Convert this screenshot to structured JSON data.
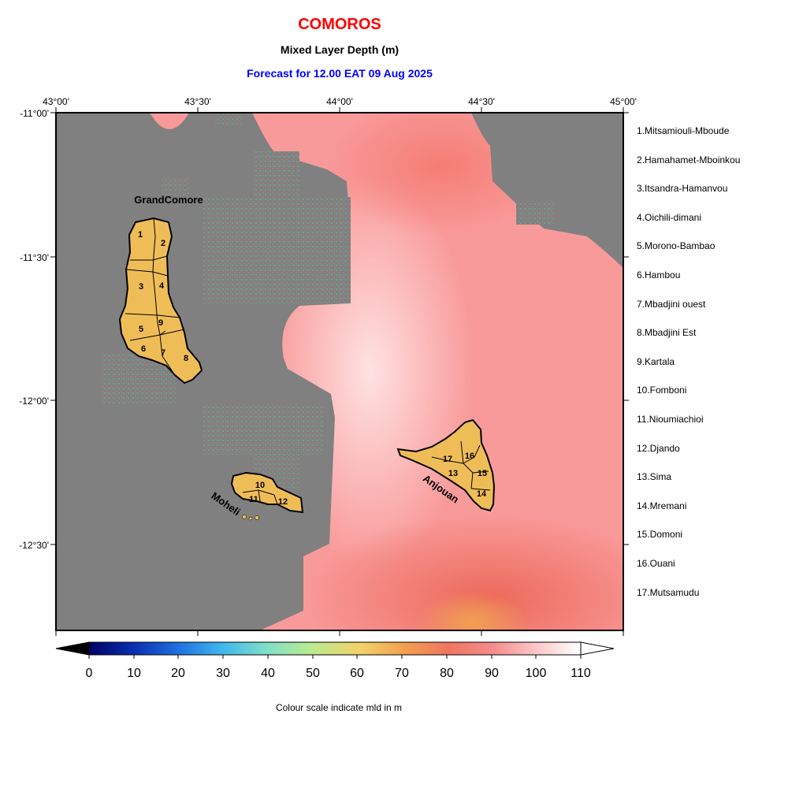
{
  "header": {
    "title": "COMOROS",
    "subtitle": "Mixed Layer Depth (m)",
    "forecast": "Forecast for  12.00 EAT 09 Aug 2025"
  },
  "map": {
    "lon_ticks": [
      "43°00'",
      "43°30'",
      "44°00'",
      "44°30'",
      "45°00'"
    ],
    "lat_ticks": [
      "-11°00'",
      "-11°30'",
      "-12°00'",
      "-12°30'"
    ],
    "lon_range": [
      43.0,
      45.0
    ],
    "lat_range": [
      -11.0,
      -12.8
    ],
    "island_labels": {
      "grand_comore": "GrandComore",
      "moheli": "Moheli",
      "anjouan": "Anjouan"
    },
    "region_numbers": [
      "1",
      "2",
      "3",
      "4",
      "5",
      "6",
      "7",
      "8",
      "9",
      "10",
      "11",
      "12",
      "13",
      "14",
      "15",
      "16",
      "17"
    ]
  },
  "regions": [
    "1.Mitsamiouli-Mboude",
    "2.Hamahamet-Mboinkou",
    "3.Itsandra-Hamanvou",
    "4.Oichili-dimani",
    "5.Morono-Bambao",
    "6.Hambou",
    "7.Mbadjini ouest",
    "8.Mbadjini Est",
    "9.Kartala",
    "10.Fomboni",
    "11.Nioumiachioi",
    "12.Djando",
    "13.Sima",
    "14.Mremani",
    "15.Domoni",
    "16.Ouani",
    "17.Mutsamudu"
  ],
  "colorbar": {
    "ticks": [
      "0",
      "10",
      "20",
      "30",
      "40",
      "50",
      "60",
      "70",
      "80",
      "90",
      "100",
      "110"
    ],
    "range": [
      0,
      110
    ],
    "caption": "Colour scale indicate mld in m",
    "colors": [
      "#000066",
      "#0a2fb0",
      "#1e6fe0",
      "#3fb6ee",
      "#7fe0c8",
      "#b9ea90",
      "#f1d36a",
      "#f2a050",
      "#f07560",
      "#f58c8c",
      "#fbc8c8",
      "#ffffff"
    ]
  },
  "colors": {
    "land": "#808080",
    "island_fill": "#efbd58",
    "sea_dominant": "#f99a9a",
    "title_red": "#ff0000",
    "forecast_blue": "#0000ff"
  }
}
